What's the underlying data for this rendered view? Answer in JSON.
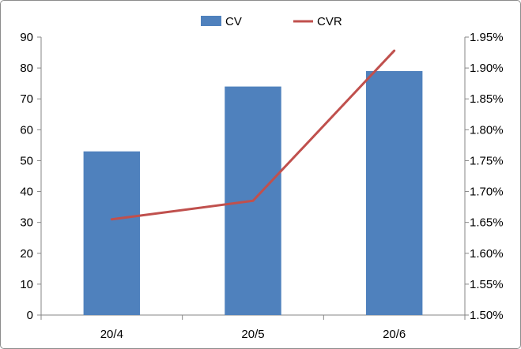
{
  "chart_data": {
    "type": "bar+line",
    "categories": [
      "20/4",
      "20/5",
      "20/6"
    ],
    "series": [
      {
        "name": "CV",
        "type": "bar",
        "axis": "left",
        "color": "#4f81bd",
        "values": [
          53,
          74,
          79
        ]
      },
      {
        "name": "CVR",
        "type": "line",
        "axis": "right",
        "color": "#c0504d",
        "values": [
          1.655,
          1.685,
          1.928
        ]
      }
    ],
    "y_left": {
      "ylim": [
        0,
        90
      ],
      "ticks": [
        "0",
        "10",
        "20",
        "30",
        "40",
        "50",
        "60",
        "70",
        "80",
        "90"
      ]
    },
    "y_right": {
      "ylim": [
        1.5,
        1.95
      ],
      "ticks": [
        "1.50%",
        "1.55%",
        "1.60%",
        "1.65%",
        "1.70%",
        "1.75%",
        "1.80%",
        "1.85%",
        "1.90%",
        "1.95%"
      ]
    },
    "legend": {
      "position": "top-center",
      "items": [
        "CV",
        "CVR"
      ]
    },
    "grid": false,
    "axis_color": "#868686"
  }
}
